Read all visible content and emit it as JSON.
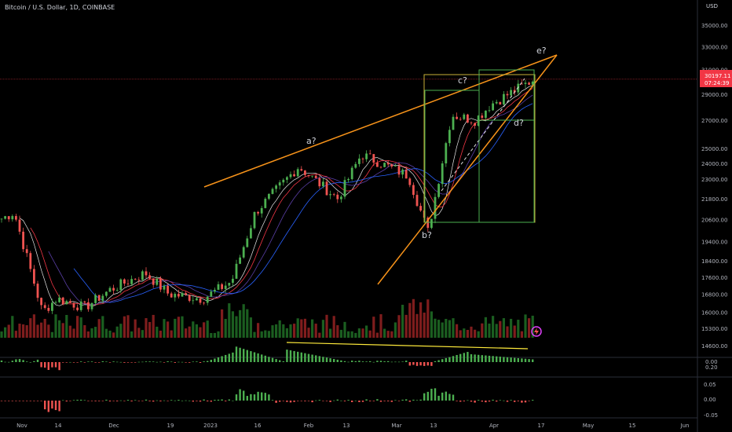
{
  "header": {
    "symbol": "Bitcoin / U.S. Dollar, 1D, COINBASE",
    "currency": "USD"
  },
  "price_axis": {
    "ticks": [
      "35000.00",
      "33000.00",
      "31000.00",
      "29000.00",
      "27000.00",
      "25000.00",
      "24000.00",
      "23000.00",
      "21800.00",
      "20600.00",
      "19400.00",
      "18400.00",
      "17600.00",
      "16800.00",
      "16000.00",
      "15300.00",
      "14600.00"
    ],
    "last_price": "30197.11",
    "countdown": "07:24:39",
    "last_price_color": "#f23645"
  },
  "time_axis": {
    "labels": [
      "Nov",
      "14",
      "Dec",
      "19",
      "2023",
      "16",
      "Feb",
      "13",
      "Mar",
      "13",
      "Apr",
      "17",
      "May",
      "15",
      "Jun"
    ]
  },
  "indicator1": {
    "ticks": [
      "0.20",
      "0.00"
    ]
  },
  "indicator2": {
    "ticks": [
      "0.05",
      "0.00",
      "-0.05"
    ]
  },
  "annotations": {
    "a": "a?",
    "b": "b?",
    "c": "c?",
    "d": "d?",
    "e": "e?"
  },
  "colors": {
    "up": "#26a69a",
    "up_bright": "#4caf50",
    "down": "#ef5350",
    "trendline": "#f7931a",
    "box_green": "#4caf50",
    "box_yellow": "#c9b037",
    "divergence": "#ffeb3b",
    "ma_fast": "#f23645",
    "ma_mid": "#8b4fc9",
    "ma_slow": "#2962ff"
  },
  "chart_data": {
    "type": "candlestick",
    "title": "Bitcoin / U.S. Dollar, 1D, COINBASE",
    "x_range": [
      "Oct 2022",
      "Jun 2023"
    ],
    "y_range": [
      14600,
      35000
    ],
    "y_scale": "log",
    "approx_close_series": [
      {
        "date": "Oct 30",
        "close": 20600
      },
      {
        "date": "Nov 6",
        "close": 21000
      },
      {
        "date": "Nov 9",
        "close": 16000
      },
      {
        "date": "Nov 14",
        "close": 16600
      },
      {
        "date": "Nov 21",
        "close": 16200
      },
      {
        "date": "Dec 1",
        "close": 17000
      },
      {
        "date": "Dec 14",
        "close": 17800
      },
      {
        "date": "Dec 19",
        "close": 16800
      },
      {
        "date": "Jan 1",
        "close": 16600
      },
      {
        "date": "Jan 10",
        "close": 17400
      },
      {
        "date": "Jan 16",
        "close": 21000
      },
      {
        "date": "Jan 29",
        "close": 23800
      },
      {
        "date": "Feb 9",
        "close": 21800
      },
      {
        "date": "Feb 16",
        "close": 24600
      },
      {
        "date": "Feb 28",
        "close": 23200
      },
      {
        "date": "Mar 10",
        "close": 19900
      },
      {
        "date": "Mar 18",
        "close": 27400
      },
      {
        "date": "Mar 28",
        "close": 27000
      },
      {
        "date": "Apr 3",
        "close": 28200
      },
      {
        "date": "Apr 13",
        "close": 30197
      }
    ],
    "wave_labels": [
      "a?",
      "b?",
      "c?",
      "d?",
      "e?"
    ],
    "last_price": 30197.11
  }
}
